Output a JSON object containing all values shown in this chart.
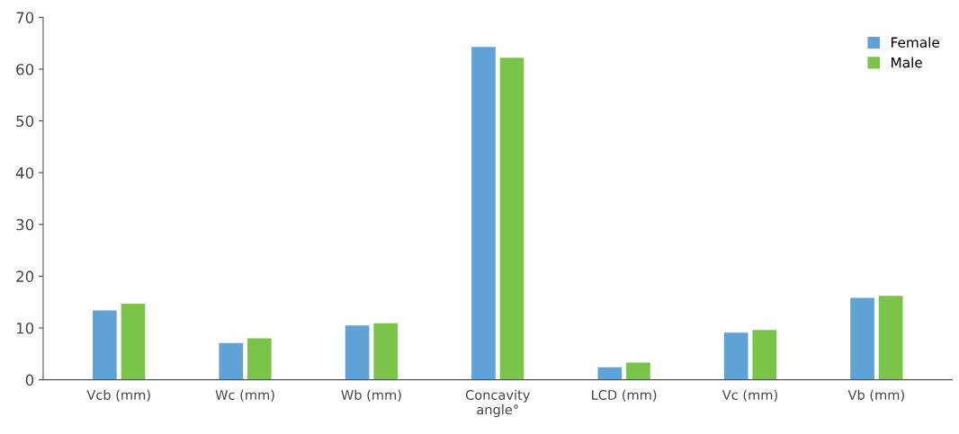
{
  "chart_data": {
    "type": "bar",
    "categories": [
      "Vcb (mm)",
      "Wc (mm)",
      "Wb (mm)",
      "Concavity\nangle°",
      "LCD (mm)",
      "Vc (mm)",
      "Vb (mm)"
    ],
    "series": [
      {
        "name": "Female",
        "color": "#5fa2d6",
        "values": [
          13.4,
          7.1,
          10.5,
          64.3,
          2.4,
          9.1,
          15.8
        ]
      },
      {
        "name": "Male",
        "color": "#7bc44a",
        "values": [
          14.7,
          8.0,
          10.9,
          62.2,
          3.3,
          9.6,
          16.2
        ]
      }
    ],
    "ylim": [
      0,
      70
    ],
    "yticks": [
      0,
      10,
      20,
      30,
      40,
      50,
      60,
      70
    ],
    "grid": false,
    "legend": "top right"
  }
}
